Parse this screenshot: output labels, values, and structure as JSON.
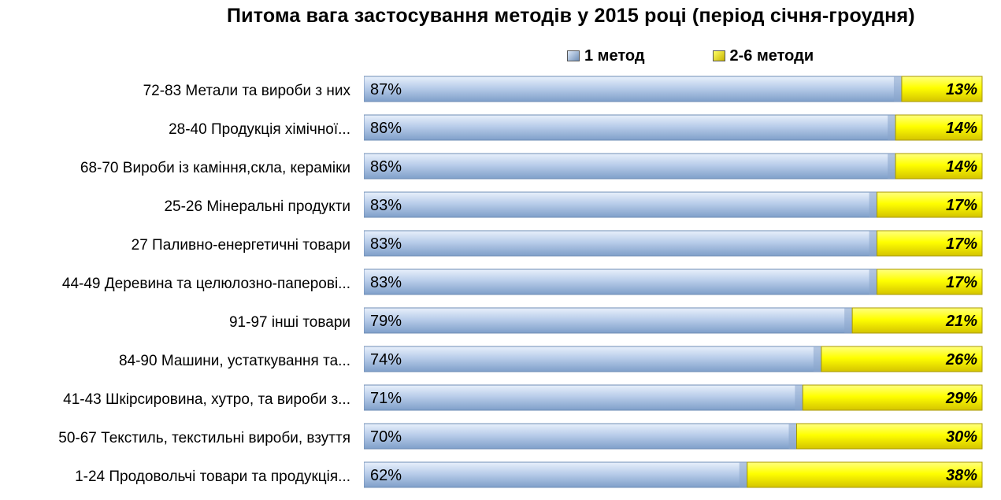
{
  "chart_data": {
    "type": "bar",
    "orientation": "horizontal",
    "stacked": true,
    "title": "Питома вага застосування методів у 2015 році (період січня-гроудня)",
    "legend_position": "top",
    "categories": [
      "72-83 Метали та вироби з них",
      "28-40 Продукція хімічної...",
      "68-70 Вироби із каміння,скла, кераміки",
      "25-26 Мінеральні продукти",
      "27 Паливно-енергетичні товари",
      "44-49 Деревина та целюлозно-паперові...",
      "91-97 інші товари",
      "84-90 Машини, устаткування та...",
      "41-43 Шкірсировина, хутро, та вироби з...",
      "50-67 Текстиль, текстильні вироби, взуття",
      "1-24 Продовольчі товари та продукція..."
    ],
    "series": [
      {
        "name": "1 метод",
        "color": "#a9c2e6",
        "values": [
          87,
          86,
          86,
          83,
          83,
          83,
          79,
          74,
          71,
          70,
          62
        ],
        "labels": [
          "87%",
          "86%",
          "86%",
          "83%",
          "83%",
          "83%",
          "79%",
          "74%",
          "71%",
          "70%",
          "62%"
        ]
      },
      {
        "name": "2-6 методи",
        "color": "#ffff00",
        "values": [
          13,
          14,
          14,
          17,
          17,
          17,
          21,
          26,
          29,
          30,
          38
        ],
        "labels": [
          "13%",
          "14%",
          "14%",
          "17%",
          "17%",
          "17%",
          "21%",
          "26%",
          "29%",
          "30%",
          "38%"
        ]
      }
    ],
    "xlim": [
      0,
      100
    ],
    "grid": false
  }
}
